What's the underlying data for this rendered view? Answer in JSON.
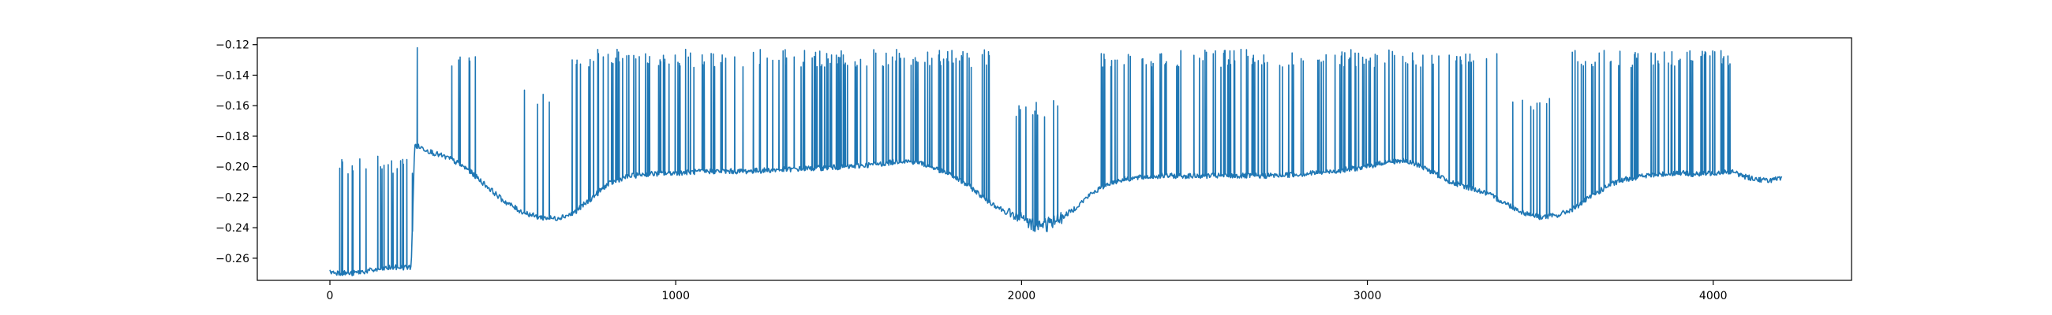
{
  "chart_data": {
    "type": "line",
    "title": "",
    "xlabel": "",
    "ylabel": "",
    "xlim": [
      -210,
      4400
    ],
    "ylim": [
      -0.2745,
      -0.1155
    ],
    "xticks": [
      0,
      1000,
      2000,
      3000,
      4000
    ],
    "xtick_labels": [
      "0",
      "1000",
      "2000",
      "3000",
      "4000"
    ],
    "yticks": [
      -0.26,
      -0.24,
      -0.22,
      -0.2,
      -0.18,
      -0.16,
      -0.14,
      -0.12
    ],
    "ytick_labels": [
      "−0.26",
      "−0.24",
      "−0.22",
      "−0.20",
      "−0.18",
      "−0.16",
      "−0.14",
      "−0.12"
    ],
    "grid": false,
    "legend": "none",
    "series": [
      {
        "color": "#1f77b4",
        "n_points": 4200,
        "baseline": [
          [
            0,
            -0.269
          ],
          [
            60,
            -0.27
          ],
          [
            120,
            -0.268
          ],
          [
            180,
            -0.266
          ],
          [
            235,
            -0.266
          ],
          [
            245,
            -0.186
          ],
          [
            270,
            -0.188
          ],
          [
            300,
            -0.191
          ],
          [
            350,
            -0.195
          ],
          [
            400,
            -0.202
          ],
          [
            450,
            -0.212
          ],
          [
            500,
            -0.222
          ],
          [
            550,
            -0.229
          ],
          [
            600,
            -0.233
          ],
          [
            650,
            -0.234
          ],
          [
            700,
            -0.231
          ],
          [
            750,
            -0.222
          ],
          [
            800,
            -0.212
          ],
          [
            850,
            -0.207
          ],
          [
            900,
            -0.205
          ],
          [
            1000,
            -0.204
          ],
          [
            1100,
            -0.203
          ],
          [
            1200,
            -0.203
          ],
          [
            1300,
            -0.202
          ],
          [
            1400,
            -0.201
          ],
          [
            1500,
            -0.2
          ],
          [
            1600,
            -0.198
          ],
          [
            1650,
            -0.196
          ],
          [
            1700,
            -0.197
          ],
          [
            1750,
            -0.201
          ],
          [
            1800,
            -0.206
          ],
          [
            1850,
            -0.213
          ],
          [
            1900,
            -0.222
          ],
          [
            1950,
            -0.229
          ],
          [
            2000,
            -0.235
          ],
          [
            2050,
            -0.239
          ],
          [
            2100,
            -0.236
          ],
          [
            2150,
            -0.228
          ],
          [
            2200,
            -0.218
          ],
          [
            2250,
            -0.211
          ],
          [
            2300,
            -0.208
          ],
          [
            2400,
            -0.206
          ],
          [
            2500,
            -0.206
          ],
          [
            2600,
            -0.206
          ],
          [
            2700,
            -0.206
          ],
          [
            2800,
            -0.205
          ],
          [
            2900,
            -0.203
          ],
          [
            3000,
            -0.2
          ],
          [
            3050,
            -0.197
          ],
          [
            3100,
            -0.196
          ],
          [
            3150,
            -0.199
          ],
          [
            3200,
            -0.205
          ],
          [
            3250,
            -0.211
          ],
          [
            3300,
            -0.214
          ],
          [
            3350,
            -0.218
          ],
          [
            3400,
            -0.224
          ],
          [
            3450,
            -0.23
          ],
          [
            3500,
            -0.233
          ],
          [
            3550,
            -0.232
          ],
          [
            3600,
            -0.227
          ],
          [
            3650,
            -0.219
          ],
          [
            3700,
            -0.212
          ],
          [
            3750,
            -0.208
          ],
          [
            3800,
            -0.206
          ],
          [
            3850,
            -0.205
          ],
          [
            3900,
            -0.204
          ],
          [
            3950,
            -0.205
          ],
          [
            4000,
            -0.204
          ],
          [
            4050,
            -0.203
          ],
          [
            4100,
            -0.207
          ],
          [
            4150,
            -0.209
          ],
          [
            4200,
            -0.208
          ]
        ],
        "spike_regions": [
          {
            "x_start": 20,
            "x_end": 240,
            "count": 26,
            "top": -0.205
          },
          {
            "x_start": 320,
            "x_end": 460,
            "count": 5,
            "top": -0.135
          },
          {
            "x_start": 550,
            "x_end": 660,
            "count": 5,
            "top": -0.16
          },
          {
            "x_start": 700,
            "x_end": 1910,
            "count": 150,
            "top": -0.135
          },
          {
            "x_start": 1970,
            "x_end": 2110,
            "count": 14,
            "top": -0.168
          },
          {
            "x_start": 2230,
            "x_end": 3380,
            "count": 130,
            "top": -0.135
          },
          {
            "x_start": 3420,
            "x_end": 3570,
            "count": 8,
            "top": -0.163
          },
          {
            "x_start": 3580,
            "x_end": 4070,
            "count": 60,
            "top": -0.135
          }
        ],
        "peaks": [
          {
            "x": 252,
            "y": -0.122
          },
          {
            "x": 372,
            "y": -0.13
          },
          {
            "x": 1490,
            "y": -0.132
          },
          {
            "x": 3050,
            "y": -0.132
          }
        ]
      }
    ]
  }
}
